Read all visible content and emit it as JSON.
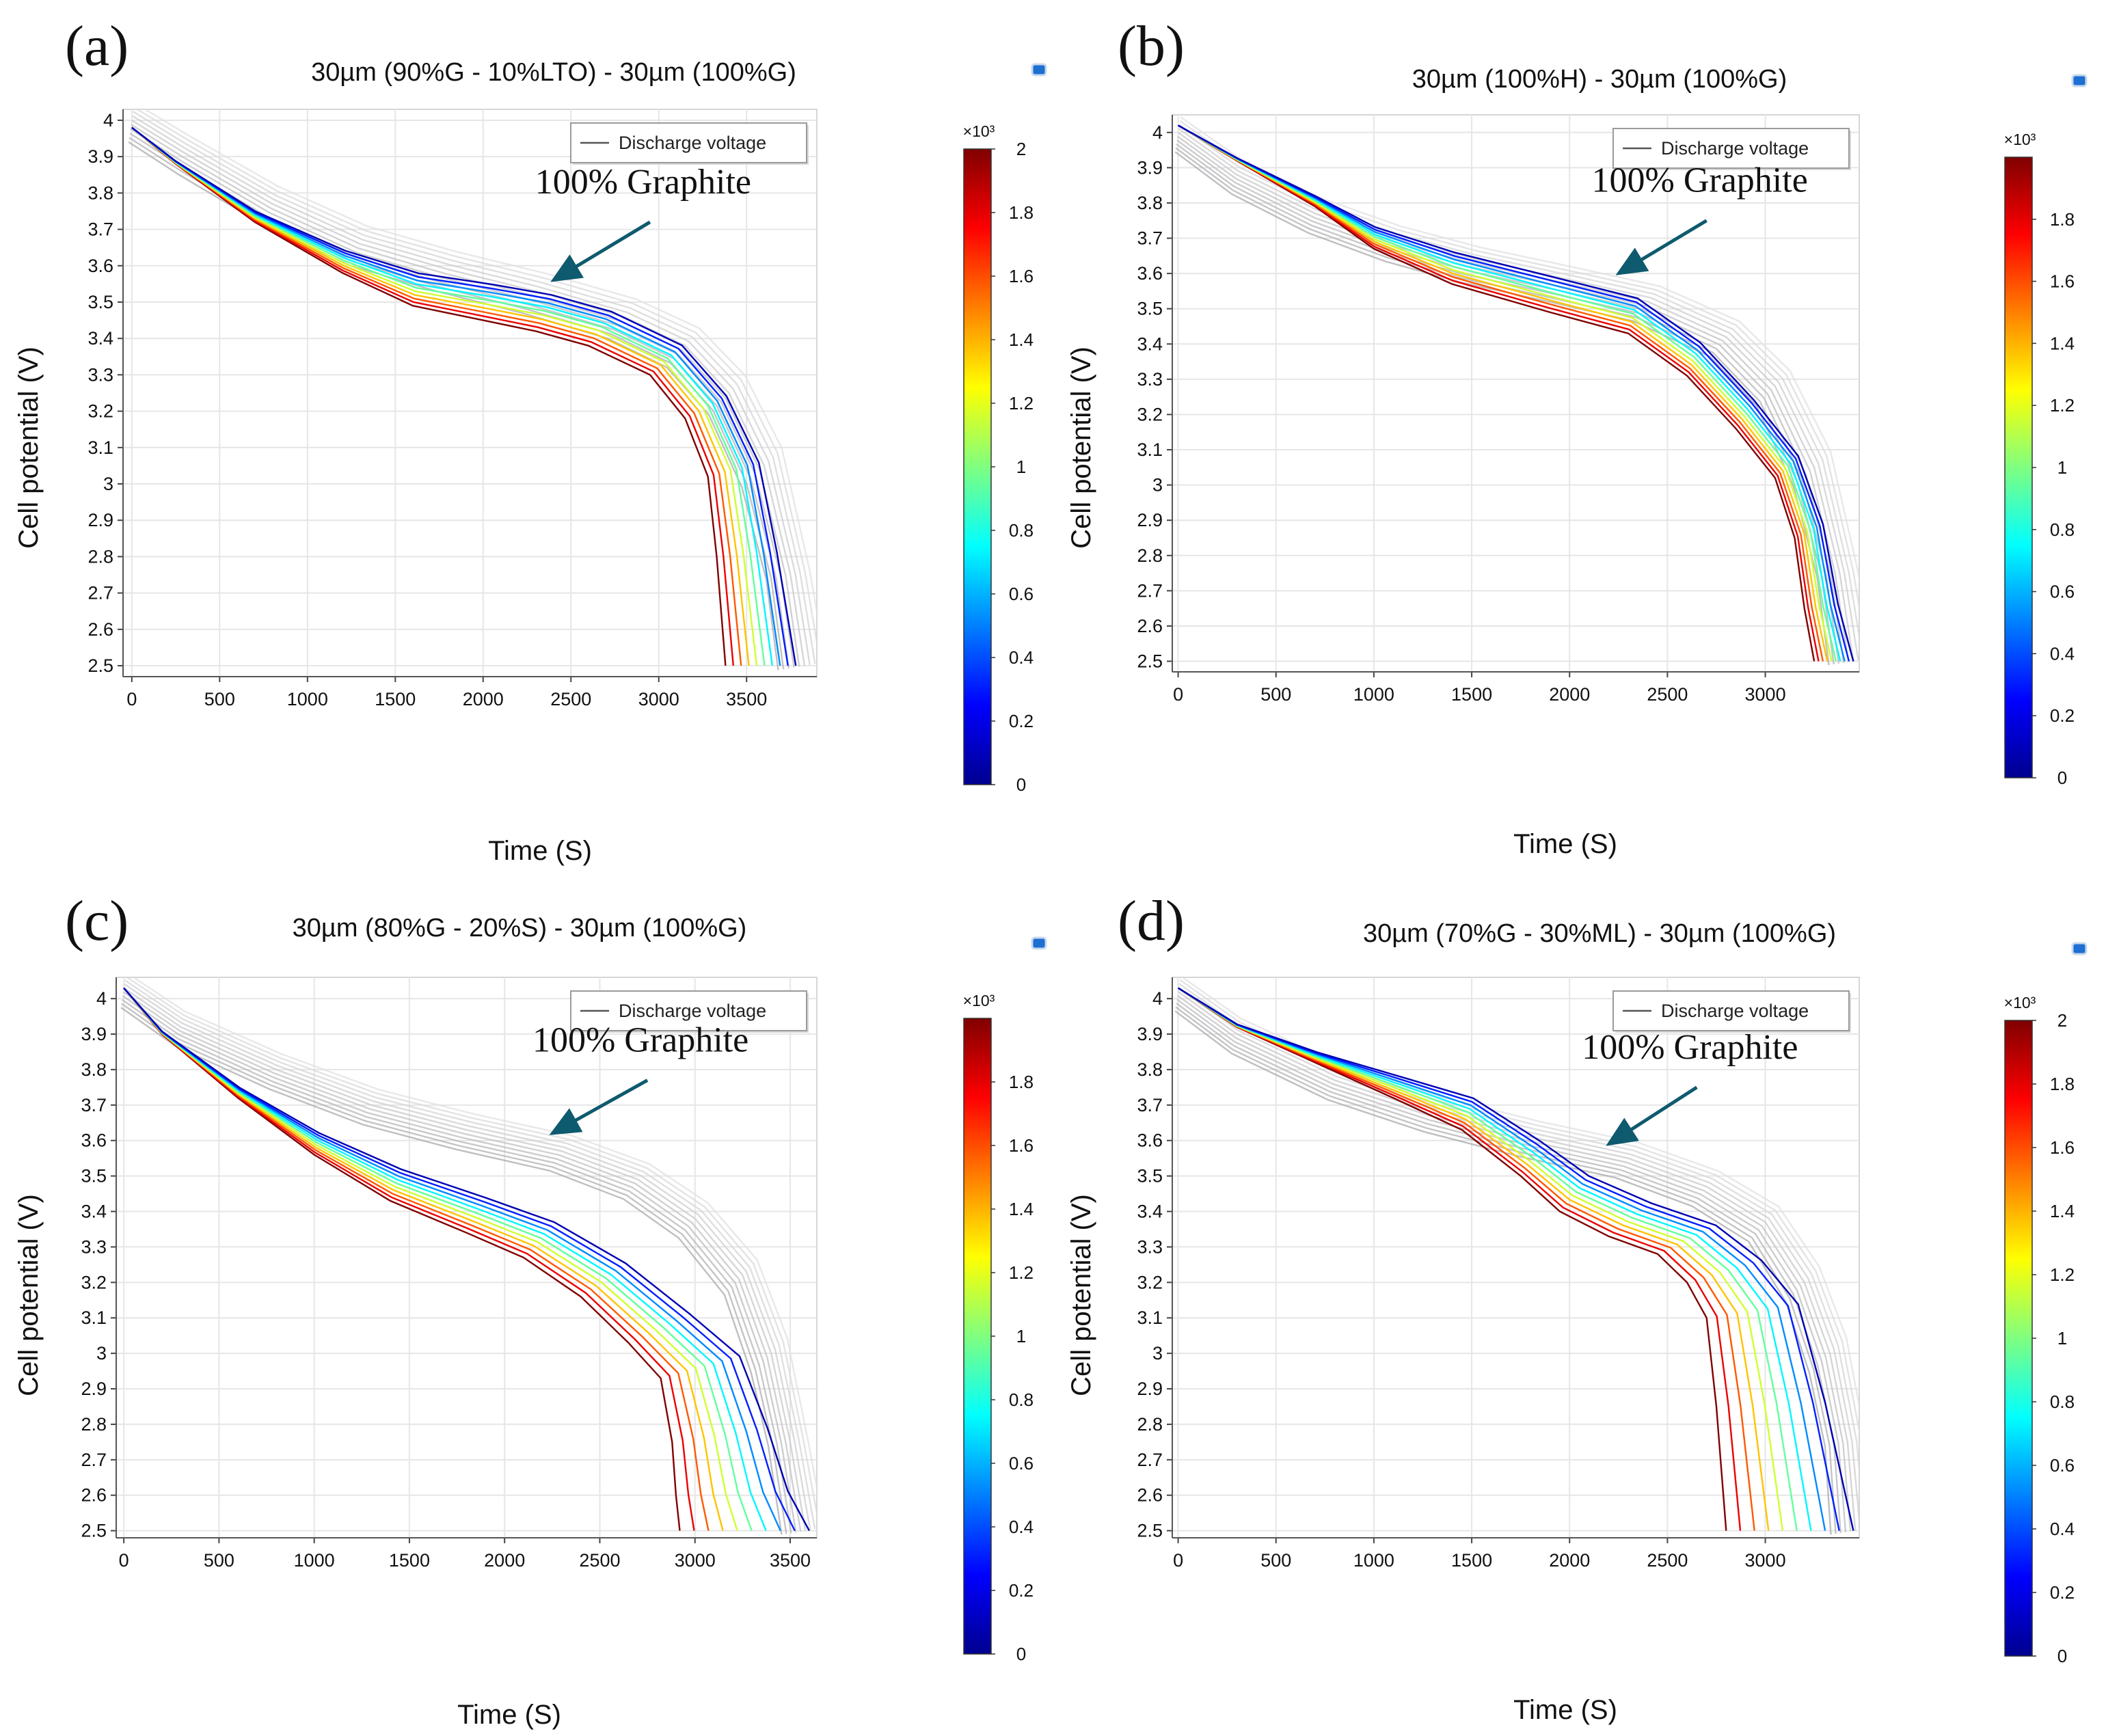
{
  "chart_data": [
    {
      "type": "line",
      "panel": "(a)",
      "title": "30µm (90%G - 10%LTO) - 30µm (100%G)",
      "xlabel": "Time (S)",
      "ylabel": "Cell potential (V)",
      "xlim": [
        -50,
        3900
      ],
      "ylim": [
        2.47,
        4.03
      ],
      "xticks": [
        0,
        500,
        1000,
        1500,
        2000,
        2500,
        3000,
        3500
      ],
      "yticks": [
        4,
        3.9,
        3.8,
        3.7,
        3.6,
        3.5,
        3.4,
        3.3,
        3.2,
        3.1,
        3,
        2.9,
        2.8,
        2.7,
        2.6,
        2.5
      ],
      "legend": "Discharge voltage",
      "annotation": "100% Graphite",
      "arrow_head": [
        2400,
        3.56
      ],
      "arrow_tail": [
        2950,
        3.72
      ],
      "colorbar": {
        "min": 0,
        "max": 2,
        "exponent": "×10³",
        "ticks": [
          "2",
          "1.8",
          "1.6",
          "1.4",
          "1.2",
          "1",
          "0.8",
          "0.6",
          "0.4",
          "0.2",
          "0"
        ]
      },
      "graphite_ref": {
        "count": 10,
        "x": [
          0,
          300,
          800,
          1300,
          1800,
          2300,
          2800,
          3150,
          3400,
          3600,
          3750,
          3830
        ],
        "y": [
          4.0,
          3.91,
          3.77,
          3.66,
          3.59,
          3.53,
          3.46,
          3.38,
          3.25,
          3.05,
          2.75,
          2.5
        ],
        "dx": 12,
        "dy": 0.012
      },
      "colored": {
        "t_end_range": [
          3380,
          3780
        ],
        "points": [
          [
            0,
            3.98
          ],
          [
            250,
            3.88
          ],
          [
            700,
            3.72
          ],
          [
            1200,
            3.58
          ],
          [
            1600,
            3.49
          ],
          [
            2000,
            3.45
          ],
          [
            2300,
            3.42
          ],
          [
            2600,
            3.38
          ],
          [
            2950,
            3.3
          ],
          [
            3150,
            3.18
          ],
          [
            3280,
            3.02
          ],
          [
            3330,
            2.8
          ],
          [
            3380,
            2.5
          ]
        ]
      }
    },
    {
      "type": "line",
      "panel": "(b)",
      "title": "30µm (100%H) - 30µm (100%G)",
      "xlabel": "Time (S)",
      "ylabel": "Cell potential (V)",
      "xlim": [
        -30,
        3480
      ],
      "ylim": [
        2.47,
        4.05
      ],
      "xticks": [
        0,
        500,
        1000,
        1500,
        2000,
        2500,
        3000
      ],
      "yticks": [
        4,
        3.9,
        3.8,
        3.7,
        3.6,
        3.5,
        3.4,
        3.3,
        3.2,
        3.1,
        3,
        2.9,
        2.8,
        2.7,
        2.6,
        2.5
      ],
      "legend": "Discharge voltage",
      "annotation": "100% Graphite",
      "arrow_head": [
        2250,
        3.6
      ],
      "arrow_tail": [
        2700,
        3.75
      ],
      "colorbar": {
        "min": 0,
        "max": 2,
        "exponent": "×10³",
        "ticks": [
          "1.8",
          "1.6",
          "1.4",
          "1.2",
          "1",
          "0.8",
          "0.6",
          "0.4",
          "0.2",
          "0"
        ]
      },
      "graphite_ref": {
        "count": 10,
        "x": [
          0,
          300,
          700,
          1100,
          1500,
          2000,
          2400,
          2800,
          3050,
          3250,
          3380,
          3450
        ],
        "y": [
          4.0,
          3.88,
          3.77,
          3.69,
          3.63,
          3.57,
          3.52,
          3.42,
          3.28,
          3.05,
          2.75,
          2.5
        ],
        "dx": 10,
        "dy": 0.011
      },
      "colored": {
        "t_end_range": [
          3250,
          3450
        ],
        "points": [
          [
            0,
            4.02
          ],
          [
            300,
            3.92
          ],
          [
            700,
            3.79
          ],
          [
            1000,
            3.67
          ],
          [
            1400,
            3.57
          ],
          [
            1900,
            3.49
          ],
          [
            2300,
            3.43
          ],
          [
            2600,
            3.31
          ],
          [
            2850,
            3.16
          ],
          [
            3050,
            3.02
          ],
          [
            3150,
            2.85
          ],
          [
            3200,
            2.65
          ],
          [
            3250,
            2.5
          ]
        ]
      }
    },
    {
      "type": "line",
      "panel": "(c)",
      "title": "30µm (80%G - 20%S) - 30µm (100%G)",
      "xlabel": "Time (S)",
      "ylabel": "Cell potential (V)",
      "xlim": [
        -40,
        3640
      ],
      "ylim": [
        2.48,
        4.06
      ],
      "xticks": [
        0,
        500,
        1000,
        1500,
        2000,
        2500,
        3000,
        3500
      ],
      "yticks": [
        4,
        3.9,
        3.8,
        3.7,
        3.6,
        3.5,
        3.4,
        3.3,
        3.2,
        3.1,
        3,
        2.9,
        2.8,
        2.7,
        2.6,
        2.5
      ],
      "legend": "Discharge voltage",
      "annotation": "100% Graphite",
      "arrow_head": [
        2250,
        3.62
      ],
      "arrow_tail": [
        2750,
        3.77
      ],
      "colorbar": {
        "min": 0,
        "max": 2,
        "exponent": "×10³",
        "ticks": [
          "1.8",
          "1.6",
          "1.4",
          "1.2",
          "1",
          "0.8",
          "0.6",
          "0.4",
          "0.2",
          "0"
        ]
      },
      "graphite_ref": {
        "count": 10,
        "x": [
          0,
          300,
          800,
          1300,
          1800,
          2300,
          2700,
          3000,
          3250,
          3400,
          3500,
          3580
        ],
        "y": [
          4.03,
          3.92,
          3.8,
          3.7,
          3.63,
          3.57,
          3.49,
          3.38,
          3.22,
          3.0,
          2.75,
          2.5
        ],
        "dx": 10,
        "dy": 0.011
      },
      "colored": {
        "t_end_range": [
          2920,
          3600
        ],
        "points": [
          [
            0,
            4.03
          ],
          [
            200,
            3.9
          ],
          [
            600,
            3.72
          ],
          [
            1000,
            3.56
          ],
          [
            1400,
            3.43
          ],
          [
            1800,
            3.34
          ],
          [
            2100,
            3.27
          ],
          [
            2400,
            3.16
          ],
          [
            2650,
            3.03
          ],
          [
            2820,
            2.93
          ],
          [
            2880,
            2.75
          ],
          [
            2900,
            2.6
          ],
          [
            2920,
            2.5
          ]
        ]
      }
    },
    {
      "type": "line",
      "panel": "(d)",
      "title": "30µm (70%G - 30%ML) - 30µm (100%G)",
      "xlabel": "Time (S)",
      "ylabel": "Cell potential (V)",
      "xlim": [
        -30,
        3480
      ],
      "ylim": [
        2.48,
        4.06
      ],
      "xticks": [
        0,
        500,
        1000,
        1500,
        2000,
        2500,
        3000
      ],
      "yticks": [
        4,
        3.9,
        3.8,
        3.7,
        3.6,
        3.5,
        3.4,
        3.3,
        3.2,
        3.1,
        3,
        2.9,
        2.8,
        2.7,
        2.6,
        2.5
      ],
      "legend": "Discharge voltage",
      "annotation": "100% Graphite",
      "arrow_head": [
        2200,
        3.59
      ],
      "arrow_tail": [
        2650,
        3.75
      ],
      "colorbar": {
        "min": 0,
        "max": 2,
        "exponent": "×10³",
        "ticks": [
          "2",
          "1.8",
          "1.6",
          "1.4",
          "1.2",
          "1",
          "0.8",
          "0.6",
          "0.4",
          "0.2",
          "0"
        ]
      },
      "graphite_ref": {
        "count": 10,
        "x": [
          0,
          300,
          800,
          1300,
          1800,
          2300,
          2700,
          3000,
          3200,
          3330,
          3420,
          3460
        ],
        "y": [
          4.02,
          3.9,
          3.77,
          3.68,
          3.61,
          3.55,
          3.47,
          3.37,
          3.2,
          3.0,
          2.75,
          2.5
        ],
        "dx": 10,
        "dy": 0.011
      },
      "colored": {
        "t_end_range": [
          2800,
          3450
        ],
        "points": [
          [
            0,
            4.03
          ],
          [
            300,
            3.92
          ],
          [
            700,
            3.82
          ],
          [
            1100,
            3.72
          ],
          [
            1450,
            3.63
          ],
          [
            1750,
            3.5
          ],
          [
            1950,
            3.4
          ],
          [
            2200,
            3.33
          ],
          [
            2450,
            3.28
          ],
          [
            2600,
            3.2
          ],
          [
            2700,
            3.1
          ],
          [
            2750,
            2.85
          ],
          [
            2800,
            2.5
          ]
        ]
      }
    }
  ]
}
